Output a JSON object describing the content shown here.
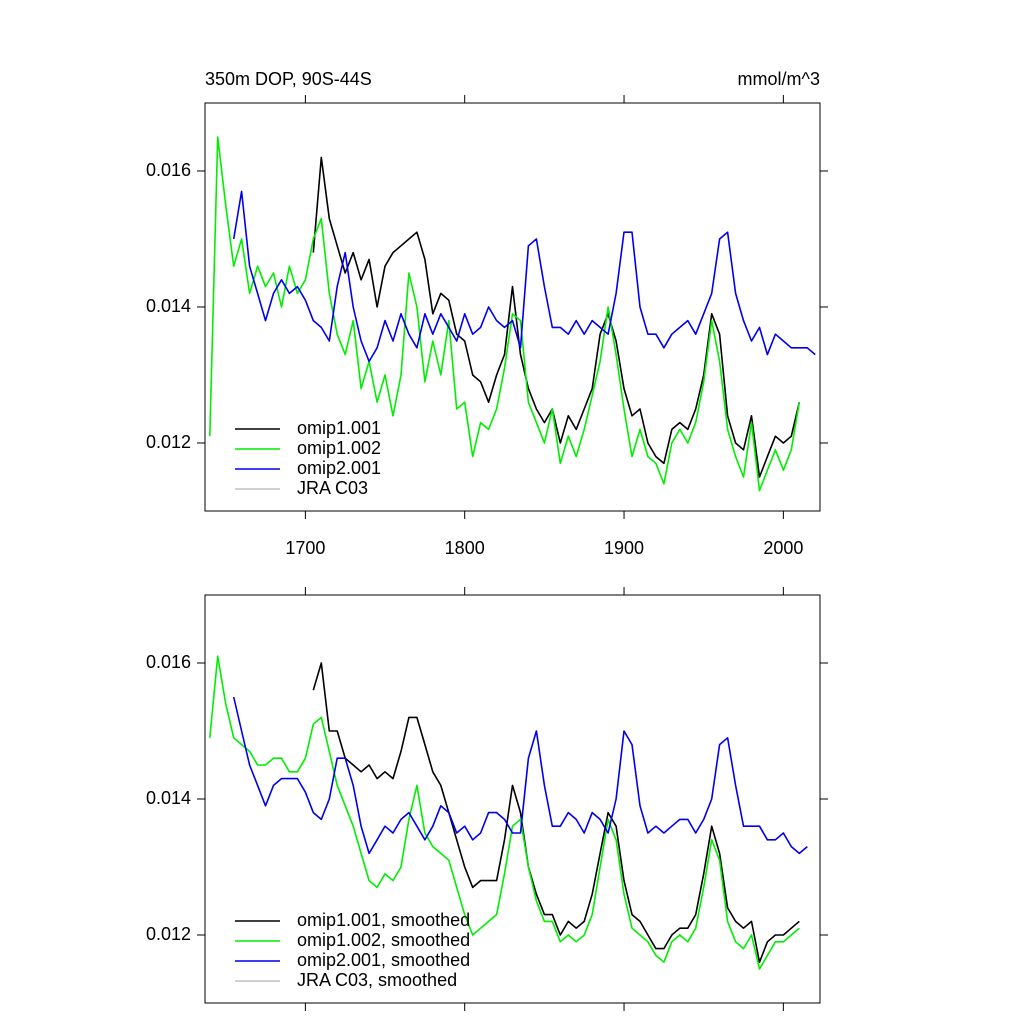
{
  "chart_data": [
    {
      "type": "line",
      "title": "350m DOP, 90S-44S",
      "units": "mmol/m^3",
      "x": [
        1640,
        1645,
        1650,
        1655,
        1660,
        1665,
        1670,
        1675,
        1680,
        1685,
        1690,
        1695,
        1700,
        1705,
        1710,
        1715,
        1720,
        1725,
        1730,
        1735,
        1740,
        1745,
        1750,
        1755,
        1760,
        1765,
        1770,
        1775,
        1780,
        1785,
        1790,
        1795,
        1800,
        1805,
        1810,
        1815,
        1820,
        1825,
        1830,
        1835,
        1840,
        1845,
        1850,
        1855,
        1860,
        1865,
        1870,
        1875,
        1880,
        1885,
        1890,
        1895,
        1900,
        1905,
        1910,
        1915,
        1920,
        1925,
        1930,
        1935,
        1940,
        1945,
        1950,
        1955,
        1960,
        1965,
        1970,
        1975,
        1980,
        1985,
        1990,
        1995,
        2000,
        2005,
        2010,
        2015,
        2020
      ],
      "xlim": [
        1637,
        2023
      ],
      "xticks": [
        1700,
        1800,
        1900,
        2000
      ],
      "ylim": [
        0.011,
        0.017
      ],
      "yticks": [
        0.012,
        0.014,
        0.016
      ],
      "legend": "lower left",
      "series": [
        {
          "name": "omip1.001",
          "color": "#000000",
          "values": [
            null,
            null,
            null,
            null,
            null,
            null,
            null,
            null,
            null,
            null,
            null,
            null,
            null,
            0.0148,
            0.0162,
            0.0153,
            0.0149,
            0.0145,
            0.0148,
            0.0144,
            0.0147,
            0.014,
            0.0146,
            0.0148,
            0.0149,
            0.015,
            0.0151,
            0.0147,
            0.0139,
            0.0142,
            0.0141,
            0.0136,
            0.0135,
            0.013,
            0.0129,
            0.0126,
            0.013,
            0.0133,
            0.0143,
            0.0133,
            0.0128,
            0.0125,
            0.0123,
            0.0125,
            0.012,
            0.0124,
            0.0122,
            0.0125,
            0.0128,
            0.0136,
            0.0139,
            0.0135,
            0.0128,
            0.0124,
            0.0125,
            0.012,
            0.0118,
            0.0117,
            0.0122,
            0.0123,
            0.0122,
            0.0125,
            0.013,
            0.0139,
            0.0136,
            0.0124,
            0.012,
            0.0119,
            0.0124,
            0.0115,
            0.0118,
            0.0121,
            0.012,
            0.0121,
            0.0126,
            null,
            null
          ]
        },
        {
          "name": "omip1.002",
          "color": "#00ee00",
          "values": [
            0.0121,
            0.0165,
            0.0155,
            0.0146,
            0.015,
            0.0142,
            0.0146,
            0.0143,
            0.0145,
            0.014,
            0.0146,
            0.0142,
            0.0144,
            0.015,
            0.0153,
            0.0142,
            0.0136,
            0.0133,
            0.0138,
            0.0128,
            0.0132,
            0.0126,
            0.013,
            0.0124,
            0.013,
            0.0145,
            0.014,
            0.0129,
            0.0135,
            0.013,
            0.0138,
            0.0125,
            0.0126,
            0.0118,
            0.0123,
            0.0122,
            0.0125,
            0.0131,
            0.0139,
            0.0138,
            0.0126,
            0.0123,
            0.012,
            0.0125,
            0.0117,
            0.0121,
            0.0118,
            0.0122,
            0.0127,
            0.0132,
            0.014,
            0.0133,
            0.0125,
            0.0118,
            0.0122,
            0.0118,
            0.0117,
            0.0114,
            0.012,
            0.0122,
            0.012,
            0.0123,
            0.0129,
            0.0138,
            0.0132,
            0.0122,
            0.0118,
            0.0115,
            0.0123,
            0.0113,
            0.0116,
            0.0119,
            0.0116,
            0.0119,
            0.0126,
            null,
            null
          ]
        },
        {
          "name": "omip2.001",
          "color": "#0000ee",
          "values": [
            null,
            null,
            null,
            0.015,
            0.0157,
            0.0146,
            0.0142,
            0.0138,
            0.0142,
            0.0144,
            0.0142,
            0.0143,
            0.0141,
            0.0138,
            0.0137,
            0.0135,
            0.0143,
            0.0148,
            0.014,
            0.0135,
            0.0132,
            0.0134,
            0.0138,
            0.0135,
            0.0139,
            0.0136,
            0.0134,
            0.0139,
            0.0136,
            0.0139,
            0.0137,
            0.0135,
            0.0139,
            0.0136,
            0.0137,
            0.014,
            0.0138,
            0.0137,
            0.0138,
            0.0134,
            0.0149,
            0.015,
            0.0143,
            0.0137,
            0.0137,
            0.0136,
            0.0138,
            0.0136,
            0.0138,
            0.0137,
            0.0136,
            0.0142,
            0.0151,
            0.0151,
            0.014,
            0.0136,
            0.0136,
            0.0134,
            0.0136,
            0.0137,
            0.0138,
            0.0136,
            0.0139,
            0.0142,
            0.015,
            0.0151,
            0.0142,
            0.0138,
            0.0135,
            0.0137,
            0.0133,
            0.0136,
            0.0135,
            0.0134,
            0.0134,
            0.0134,
            0.0133
          ]
        },
        {
          "name": "JRA C03",
          "color": "#c0c0c0",
          "values": [
            null,
            null,
            null,
            null,
            null,
            null,
            null,
            null,
            null,
            null,
            null,
            null,
            null,
            null,
            null,
            null,
            null,
            null,
            null,
            null,
            null,
            null,
            null,
            null,
            null,
            null,
            null,
            null,
            null,
            null,
            null,
            null,
            null,
            null,
            null,
            null,
            null,
            null,
            null,
            null,
            null,
            null,
            null,
            null,
            null,
            null,
            null,
            null,
            null,
            null,
            null,
            null,
            null,
            null,
            null,
            null,
            null,
            null,
            null,
            null,
            null,
            null,
            null,
            null,
            null,
            null,
            null,
            null,
            null,
            null,
            null,
            null,
            null,
            null,
            null,
            null,
            null
          ]
        }
      ]
    },
    {
      "type": "line",
      "x": [
        1640,
        1645,
        1650,
        1655,
        1660,
        1665,
        1670,
        1675,
        1680,
        1685,
        1690,
        1695,
        1700,
        1705,
        1710,
        1715,
        1720,
        1725,
        1730,
        1735,
        1740,
        1745,
        1750,
        1755,
        1760,
        1765,
        1770,
        1775,
        1780,
        1785,
        1790,
        1795,
        1800,
        1805,
        1810,
        1815,
        1820,
        1825,
        1830,
        1835,
        1840,
        1845,
        1850,
        1855,
        1860,
        1865,
        1870,
        1875,
        1880,
        1885,
        1890,
        1895,
        1900,
        1905,
        1910,
        1915,
        1920,
        1925,
        1930,
        1935,
        1940,
        1945,
        1950,
        1955,
        1960,
        1965,
        1970,
        1975,
        1980,
        1985,
        1990,
        1995,
        2000,
        2005,
        2010,
        2015,
        2020
      ],
      "xlim": [
        1637,
        2023
      ],
      "xticks": [
        1700,
        1800,
        1900,
        2000
      ],
      "xtick_labels": false,
      "ylim": [
        0.011,
        0.017
      ],
      "yticks": [
        0.012,
        0.014,
        0.016
      ],
      "legend": "lower left",
      "series": [
        {
          "name": "omip1.001, smoothed",
          "color": "#000000",
          "values": [
            null,
            null,
            null,
            null,
            null,
            null,
            null,
            null,
            null,
            null,
            null,
            null,
            null,
            0.0156,
            0.016,
            0.015,
            0.015,
            0.0146,
            0.0145,
            0.0144,
            0.0145,
            0.0143,
            0.0144,
            0.0143,
            0.0147,
            0.0152,
            0.0152,
            0.0148,
            0.0144,
            0.0142,
            0.0138,
            0.0134,
            0.013,
            0.0127,
            0.0128,
            0.0128,
            0.0128,
            0.0134,
            0.0142,
            0.0138,
            0.013,
            0.0126,
            0.0123,
            0.0123,
            0.012,
            0.0122,
            0.0121,
            0.0122,
            0.0126,
            0.0132,
            0.0138,
            0.0136,
            0.0128,
            0.0123,
            0.0122,
            0.012,
            0.0118,
            0.0118,
            0.012,
            0.0121,
            0.0121,
            0.0123,
            0.0129,
            0.0136,
            0.0132,
            0.0124,
            0.0122,
            0.0121,
            0.0122,
            0.0116,
            0.0119,
            0.012,
            0.012,
            0.0121,
            0.0122,
            null,
            null
          ]
        },
        {
          "name": "omip1.002, smoothed",
          "color": "#00ee00",
          "values": [
            0.0149,
            0.0161,
            0.0154,
            0.0149,
            0.0148,
            0.0147,
            0.0145,
            0.0145,
            0.0146,
            0.0146,
            0.0144,
            0.0144,
            0.0146,
            0.0151,
            0.0152,
            0.0147,
            0.0142,
            0.0139,
            0.0136,
            0.0132,
            0.0128,
            0.0127,
            0.0129,
            0.0128,
            0.013,
            0.0137,
            0.0142,
            0.0135,
            0.0133,
            0.0132,
            0.0131,
            0.0127,
            0.0123,
            0.012,
            0.0121,
            0.0122,
            0.0123,
            0.0129,
            0.0136,
            0.0137,
            0.013,
            0.0125,
            0.0122,
            0.0122,
            0.0119,
            0.012,
            0.0119,
            0.012,
            0.0123,
            0.013,
            0.0137,
            0.0134,
            0.0126,
            0.0121,
            0.012,
            0.0119,
            0.0117,
            0.0116,
            0.0119,
            0.012,
            0.0119,
            0.0121,
            0.0127,
            0.0134,
            0.0131,
            0.0122,
            0.0119,
            0.0118,
            0.012,
            0.0115,
            0.0117,
            0.0119,
            0.0119,
            0.012,
            0.0121,
            null,
            null
          ]
        },
        {
          "name": "omip2.001, smoothed",
          "color": "#0000ee",
          "values": [
            null,
            null,
            null,
            0.0155,
            0.015,
            0.0145,
            0.0142,
            0.0139,
            0.0142,
            0.0143,
            0.0143,
            0.0143,
            0.0141,
            0.0138,
            0.0137,
            0.014,
            0.0146,
            0.0146,
            0.0142,
            0.0136,
            0.0132,
            0.0134,
            0.0136,
            0.0135,
            0.0137,
            0.0138,
            0.0136,
            0.0134,
            0.0136,
            0.0139,
            0.0138,
            0.0135,
            0.0136,
            0.0134,
            0.0135,
            0.0138,
            0.0138,
            0.0137,
            0.0135,
            0.0135,
            0.0146,
            0.015,
            0.0142,
            0.0136,
            0.0136,
            0.0138,
            0.0137,
            0.0135,
            0.0138,
            0.0137,
            0.0135,
            0.014,
            0.015,
            0.0148,
            0.0139,
            0.0135,
            0.0136,
            0.0135,
            0.0136,
            0.0137,
            0.0137,
            0.0135,
            0.0137,
            0.014,
            0.0148,
            0.0149,
            0.0142,
            0.0136,
            0.0136,
            0.0136,
            0.0134,
            0.0134,
            0.0135,
            0.0133,
            0.0132,
            0.0133,
            null
          ]
        },
        {
          "name": "JRA C03, smoothed",
          "color": "#c0c0c0",
          "values": [
            null,
            null,
            null,
            null,
            null,
            null,
            null,
            null,
            null,
            null,
            null,
            null,
            null,
            null,
            null,
            null,
            null,
            null,
            null,
            null,
            null,
            null,
            null,
            null,
            null,
            null,
            null,
            null,
            null,
            null,
            null,
            null,
            null,
            null,
            null,
            null,
            null,
            null,
            null,
            null,
            null,
            null,
            null,
            null,
            null,
            null,
            null,
            null,
            null,
            null,
            null,
            null,
            null,
            null,
            null,
            null,
            null,
            null,
            null,
            null,
            null,
            null,
            null,
            null,
            null,
            null,
            null,
            null,
            null,
            null,
            null,
            null,
            null,
            null,
            null,
            null,
            null
          ]
        }
      ]
    }
  ]
}
